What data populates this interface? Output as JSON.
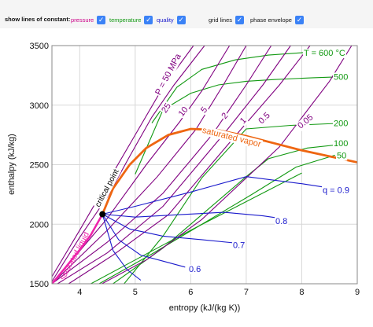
{
  "controls": {
    "show_label": "show lines of constant:",
    "pressure": {
      "label": "pressure",
      "checked": true,
      "color": "#cc0088"
    },
    "temperature": {
      "label": "temperature",
      "checked": true,
      "color": "#119911"
    },
    "quality": {
      "label": "quality",
      "checked": true,
      "color": "#1a1acc"
    },
    "grid_lines": {
      "label": "grid lines",
      "checked": true
    },
    "phase_envelope": {
      "label": "phase envelope",
      "checked": true
    },
    "checkbox_color": "#3b82f6"
  },
  "chart_data": {
    "type": "line",
    "xlabel": "entropy (kJ/(kg K))",
    "ylabel": "enthalpy (kJ/kg)",
    "xlim": [
      3.5,
      9
    ],
    "ylim": [
      1500,
      3500
    ],
    "xticks": [
      "4",
      "5",
      "6",
      "7",
      "8",
      "9"
    ],
    "yticks": [
      "1500",
      "2000",
      "2500",
      "3000",
      "3500"
    ],
    "grid": true,
    "colors": {
      "pressure": "#800080",
      "temperature": "#119911",
      "quality": "#1a1acc",
      "envelope": "#ee6611",
      "critical": "#000000"
    },
    "critical_point": {
      "label": "critical point",
      "s": 4.41,
      "h": 2084
    },
    "saturated_liquid": {
      "label": "saturated liquid",
      "s": [
        3.5,
        3.75,
        4.0,
        4.2,
        4.41
      ],
      "h": [
        1500,
        1640,
        1785,
        1910,
        2084
      ]
    },
    "saturated_vapor": {
      "label": "saturated vapor",
      "s": [
        4.41,
        4.6,
        4.9,
        5.2,
        5.6,
        6.0,
        6.5,
        7.0,
        7.5,
        8.0,
        8.5,
        9.0
      ],
      "h": [
        2084,
        2300,
        2500,
        2640,
        2750,
        2800,
        2790,
        2740,
        2680,
        2620,
        2570,
        2520
      ]
    },
    "pressure_lines": [
      {
        "name": "P = 50 MPa",
        "s": [
          3.5,
          4.0,
          4.5,
          5.0,
          5.5,
          6.05
        ],
        "h": [
          1560,
          1950,
          2350,
          2750,
          3150,
          3500
        ]
      },
      {
        "name": "25",
        "s": [
          3.5,
          4.0,
          4.5,
          4.9,
          5.3,
          5.7,
          6.25
        ],
        "h": [
          1520,
          1890,
          2230,
          2570,
          2900,
          3170,
          3500
        ]
      },
      {
        "name": "10",
        "s": [
          3.5,
          4.5,
          5.2,
          5.8,
          6.2,
          6.7
        ],
        "h": [
          1500,
          2050,
          2500,
          2860,
          3120,
          3500
        ]
      },
      {
        "name": "5",
        "s": [
          3.5,
          4.5,
          5.4,
          6.1,
          6.6,
          7.0
        ],
        "h": [
          1500,
          1950,
          2400,
          2800,
          3180,
          3500
        ]
      },
      {
        "name": "2",
        "s": [
          3.5,
          4.5,
          5.5,
          6.4,
          7.0,
          7.45
        ],
        "h": [
          1500,
          1850,
          2260,
          2760,
          3170,
          3500
        ]
      },
      {
        "name": "1",
        "s": [
          3.6,
          4.5,
          5.5,
          6.6,
          7.3,
          7.8
        ],
        "h": [
          1500,
          1760,
          2150,
          2760,
          3170,
          3500
        ]
      },
      {
        "name": "0.5",
        "s": [
          3.8,
          4.6,
          5.6,
          6.8,
          7.6,
          8.15
        ],
        "h": [
          1500,
          1740,
          2080,
          2740,
          3170,
          3500
        ]
      },
      {
        "name": "0.05",
        "s": [
          4.4,
          5.2,
          6.2,
          7.6,
          8.5,
          8.9
        ],
        "h": [
          1500,
          1700,
          2040,
          2650,
          3200,
          3500
        ]
      }
    ],
    "temperature_lines": [
      {
        "name": "T = 600 °C",
        "s": [
          5.3,
          5.75,
          6.2,
          6.8,
          7.4,
          8.0,
          8.8
        ],
        "h": [
          2850,
          3150,
          3300,
          3380,
          3420,
          3440,
          3460
        ]
      },
      {
        "name": "500",
        "s": [
          5.0,
          5.5,
          6.0,
          6.5,
          7.0,
          7.5,
          8.2,
          8.8
        ],
        "h": [
          2420,
          2960,
          3100,
          3170,
          3200,
          3215,
          3230,
          3240
        ]
      },
      {
        "name": "200",
        "s": [
          4.8,
          5.5,
          6.2,
          7.0,
          7.8,
          8.8
        ],
        "h": [
          1500,
          1900,
          2390,
          2800,
          2830,
          2850
        ]
      },
      {
        "name": "100",
        "s": [
          4.6,
          5.5,
          6.3,
          7.0,
          7.4,
          8.1,
          8.8
        ],
        "h": [
          1500,
          1800,
          2120,
          2400,
          2550,
          2640,
          2675
        ]
      },
      {
        "name": "50",
        "s": [
          4.35,
          5.3,
          6.2,
          7.1,
          7.9,
          8.6
        ],
        "h": [
          1500,
          1750,
          2000,
          2250,
          2480,
          2580
        ]
      },
      {
        "name": "",
        "s": [
          4.2,
          5.0,
          6.0,
          7.0,
          8.0
        ],
        "h": [
          1500,
          1700,
          1950,
          2190,
          2430
        ]
      }
    ],
    "quality_lines": [
      {
        "name": "q = 0.9",
        "s": [
          4.41,
          5.0,
          6.0,
          7.0,
          8.0,
          8.7
        ],
        "h": [
          2084,
          2150,
          2270,
          2400,
          2340,
          2290
        ]
      },
      {
        "name": "0.8",
        "s": [
          4.41,
          5.0,
          5.8,
          6.6,
          7.3,
          7.75
        ],
        "h": [
          2084,
          2060,
          2080,
          2100,
          2070,
          2040
        ]
      },
      {
        "name": "0.7",
        "s": [
          4.41,
          4.9,
          5.5,
          6.2,
          6.85
        ],
        "h": [
          2084,
          1960,
          1900,
          1870,
          1840
        ]
      },
      {
        "name": "0.6",
        "s": [
          4.41,
          4.7,
          5.1,
          5.5,
          5.9
        ],
        "h": [
          2084,
          1870,
          1740,
          1690,
          1640
        ]
      },
      {
        "name": "",
        "s": [
          4.41,
          4.6,
          4.85,
          5.1
        ],
        "h": [
          2084,
          1780,
          1620,
          1530
        ]
      }
    ]
  }
}
